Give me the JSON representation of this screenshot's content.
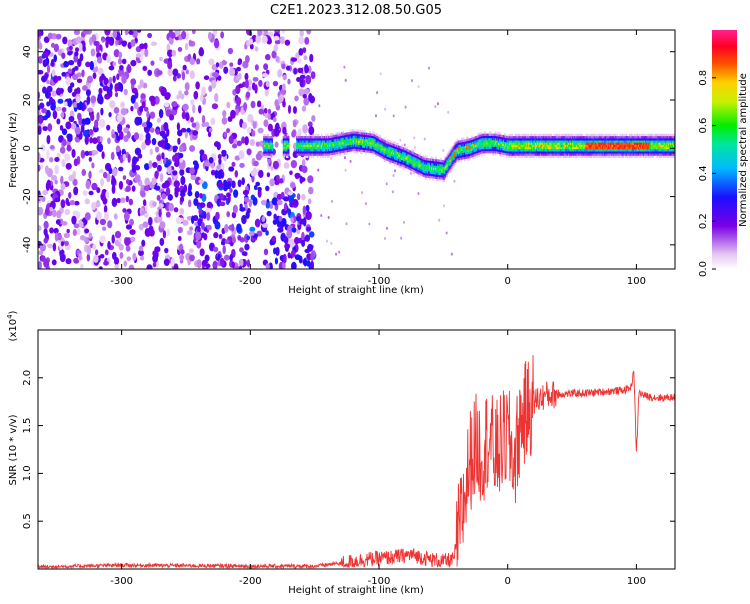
{
  "title": "C2E1.2023.312.08.50.G05",
  "chart_data": [
    {
      "type": "heatmap",
      "xlabel": "Height of straight line (km)",
      "ylabel": "Frequency (Hz)",
      "xlim": [
        -365,
        130
      ],
      "ylim": [
        -50,
        49
      ],
      "xticks": [
        -300,
        -200,
        -100,
        0,
        100
      ],
      "yticks": [
        -40,
        -20,
        0,
        20,
        40
      ],
      "colorbar": {
        "label": "Normalized spectral amplitude",
        "range": [
          0.0,
          1.0
        ],
        "ticks": [
          "0.0",
          "0.2",
          "0.4",
          "0.6",
          "0.8"
        ],
        "colormap": "rainbow (purple-blue-cyan-green-yellow-red-magenta)"
      },
      "ridge": {
        "description": "dominant frequency ridge vs height",
        "x": [
          -185,
          -160,
          -140,
          -120,
          -105,
          -95,
          -80,
          -65,
          -50,
          -40,
          -30,
          -20,
          -10,
          0,
          30,
          60,
          80,
          100,
          130
        ],
        "y": [
          1,
          1,
          1,
          3,
          2,
          -1,
          -4,
          -8,
          -9,
          -1,
          0,
          2,
          2,
          1,
          1,
          1,
          1,
          1,
          1
        ]
      },
      "grid": false
    },
    {
      "type": "line",
      "xlabel": "Height of straight line (km)",
      "ylabel": "SNR (10 * v/v)",
      "yscale_label": "(x10",
      "yscale_exp": "4",
      "yscale_close": ")",
      "xlim": [
        -365,
        130
      ],
      "ylim": [
        0,
        2.5
      ],
      "xticks": [
        -300,
        -200,
        -100,
        0,
        100
      ],
      "yticks": [
        0.5,
        1.0,
        1.5,
        2.0
      ],
      "series": [
        {
          "color": "#ee3333",
          "x": [
            -365,
            -300,
            -200,
            -150,
            -130,
            -110,
            -90,
            -75,
            -60,
            -50,
            -42,
            -35,
            -30,
            -25,
            -20,
            -15,
            -10,
            -5,
            0,
            5,
            10,
            20,
            30,
            40,
            60,
            80,
            90,
            96,
            98,
            100,
            102,
            105,
            110,
            120,
            130
          ],
          "y": [
            0.02,
            0.04,
            0.03,
            0.03,
            0.06,
            0.1,
            0.12,
            0.15,
            0.1,
            0.08,
            0.1,
            0.6,
            1.1,
            1.3,
            1.2,
            1.4,
            1.2,
            1.3,
            1.4,
            1.1,
            1.55,
            1.75,
            1.82,
            1.83,
            1.84,
            1.86,
            1.87,
            1.9,
            2.1,
            1.2,
            1.85,
            1.82,
            1.8,
            1.79,
            1.8
          ]
        }
      ],
      "grid": false
    }
  ]
}
